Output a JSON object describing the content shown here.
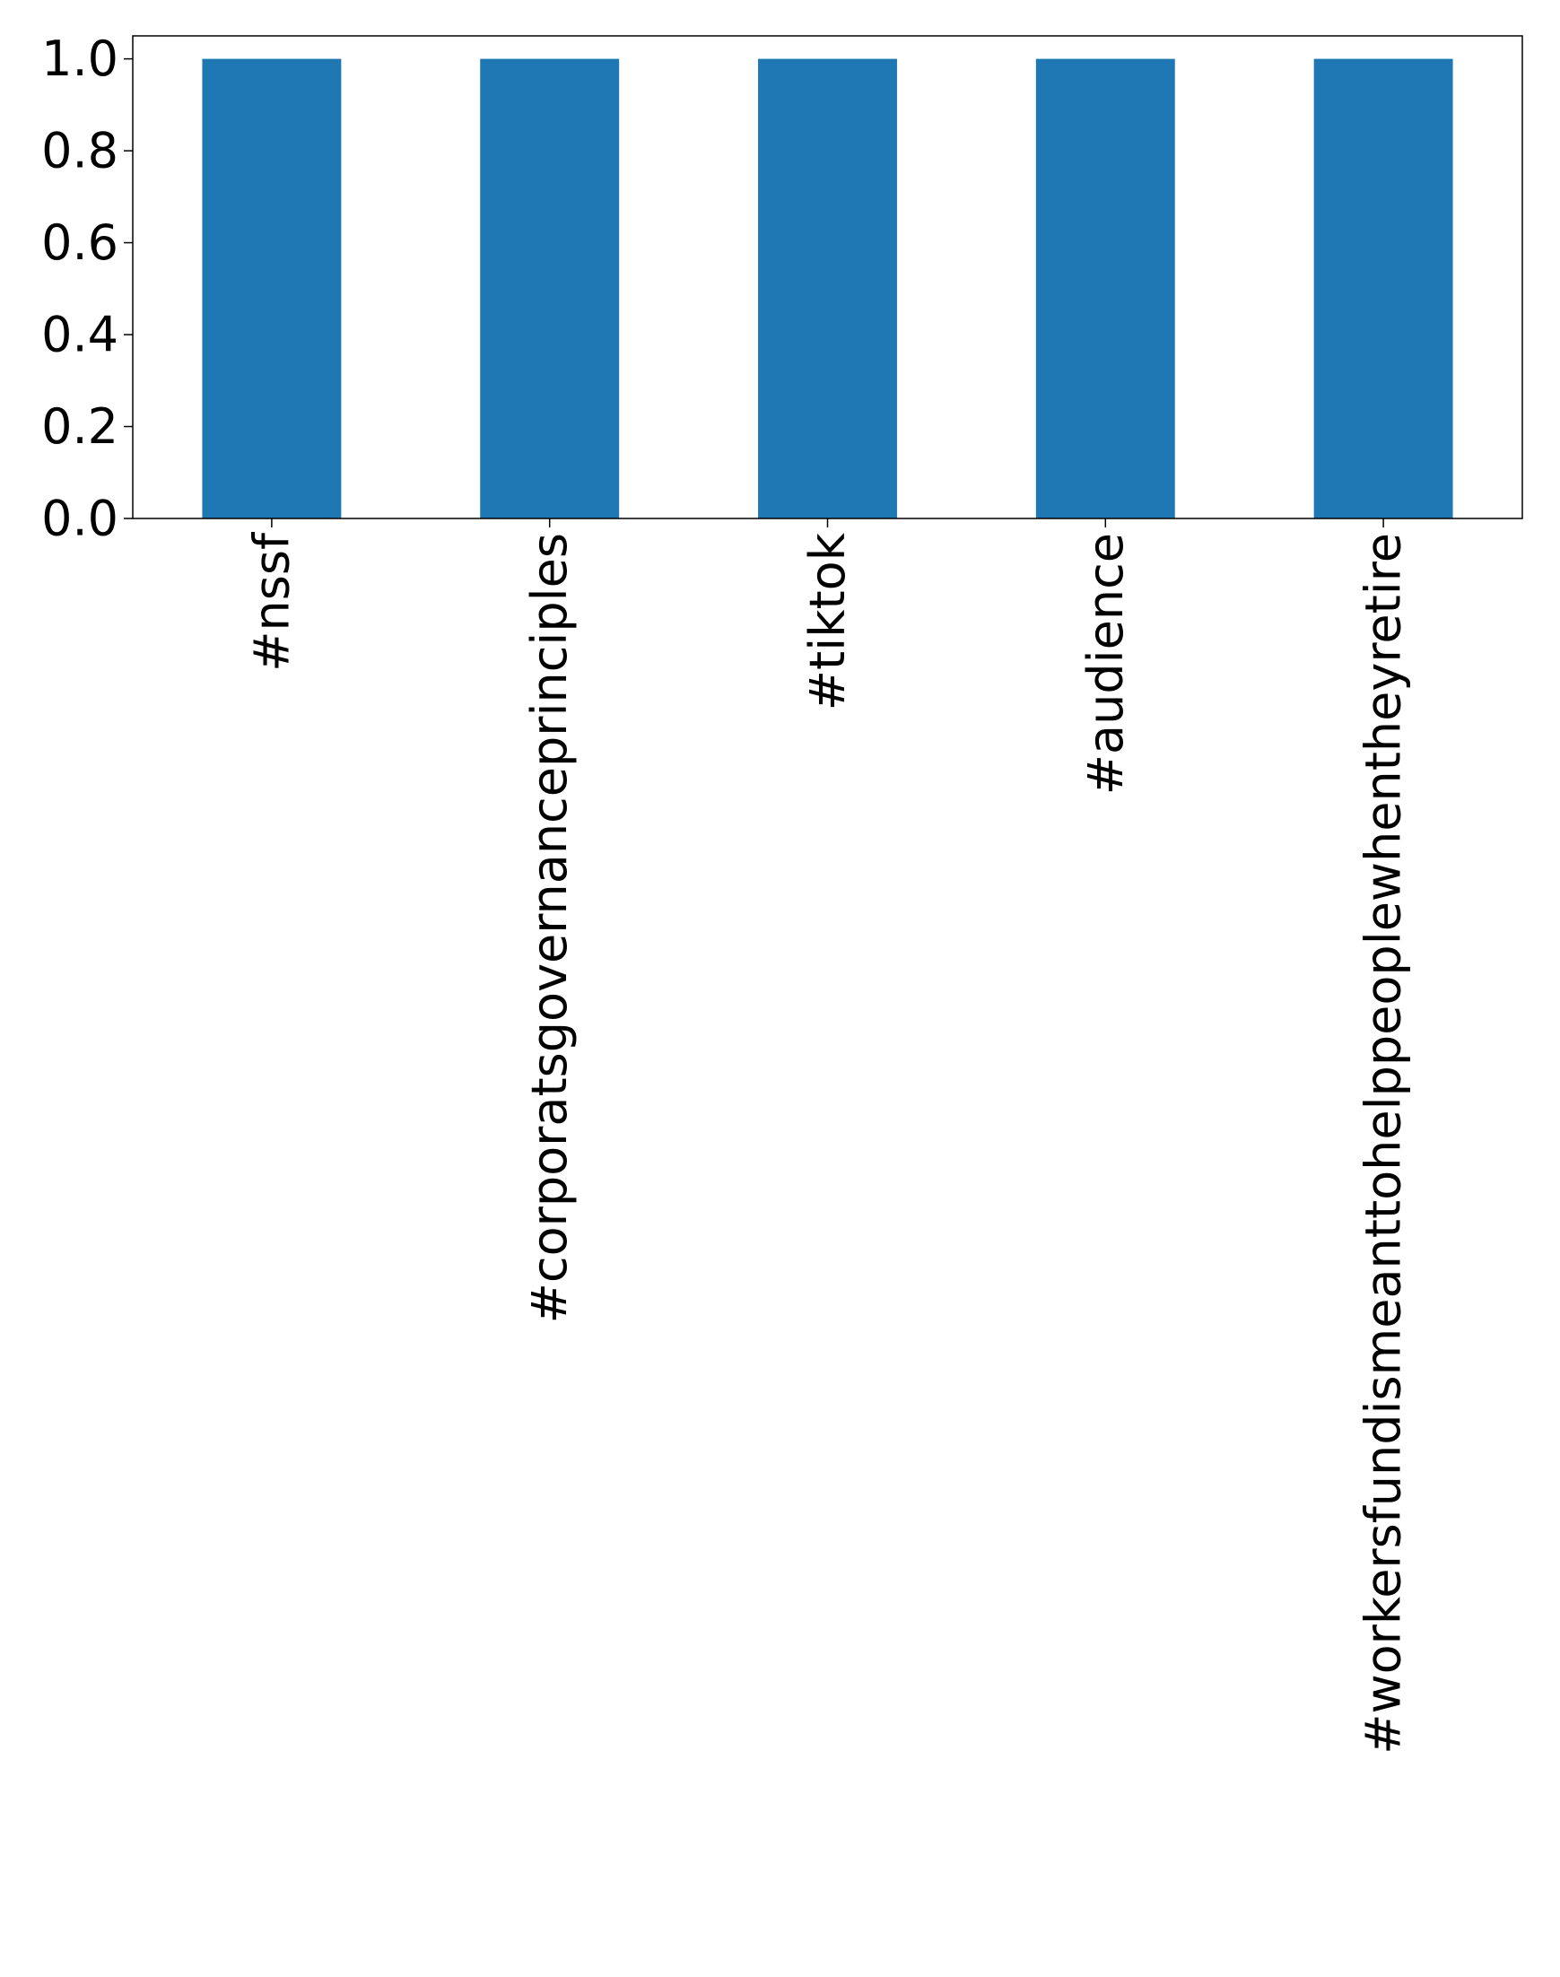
{
  "chart_data": {
    "type": "bar",
    "categories": [
      "#nssf",
      "#corporatsgovernanceprinciples",
      "#tiktok",
      "#audience",
      "#workersfundismeanttohelppeoplewhentheyretire"
    ],
    "values": [
      1.0,
      1.0,
      1.0,
      1.0,
      1.0
    ],
    "ylim": [
      0,
      1.05
    ],
    "yticks": [
      "0.0",
      "0.2",
      "0.4",
      "0.6",
      "0.8",
      "1.0"
    ],
    "ytick_values": [
      0,
      0.2,
      0.4,
      0.6,
      0.8,
      1.0
    ],
    "title": "",
    "xlabel": "",
    "ylabel": "",
    "grid": false,
    "bar_color": "#1f77b4"
  }
}
